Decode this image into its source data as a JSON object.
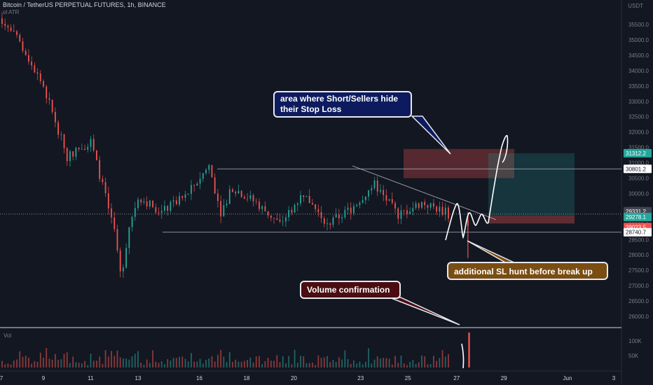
{
  "header": {
    "symbol_line": "Bitcoin / TetherUS PERPETUAL FUTURES, 1h, BINANCE",
    "indicator_line": "ol ATR",
    "currency": "USDT"
  },
  "annotations": {
    "stoploss": "area where Short/Sellers hide their Stop Loss",
    "sl_hunt": "additional SL hunt before break up",
    "volume": "Volume confirmation"
  },
  "colors": {
    "background": "#131722",
    "bull": "#26a69a",
    "bear": "#ef5350",
    "grid_text": "#787b86"
  },
  "chart_data": {
    "type": "candlestick",
    "title": "Bitcoin / TetherUS PERPETUAL FUTURES, 1h, BINANCE",
    "ylim": [
      25500,
      36500
    ],
    "y_ticks": [
      26000,
      26500,
      27000,
      27500,
      28000,
      28500,
      29000,
      29500,
      30000,
      30500,
      31000,
      31500,
      32000,
      32500,
      33000,
      33500,
      34000,
      34500,
      35000,
      35500
    ],
    "x_ticks": [
      "7",
      "9",
      "11",
      "13",
      "16",
      "18",
      "20",
      "23",
      "25",
      "27",
      "29",
      "Jun",
      "3"
    ],
    "price_series": [
      {
        "day": 7,
        "price": 35900
      },
      {
        "day": 8,
        "price": 34900
      },
      {
        "day": 9,
        "price": 33500
      },
      {
        "day": 10,
        "price": 31200
      },
      {
        "day": 11,
        "price": 31700
      },
      {
        "day": 12,
        "price": 28800
      },
      {
        "day": 12.3,
        "price": 27200
      },
      {
        "day": 12.6,
        "price": 28900
      },
      {
        "day": 13,
        "price": 29900
      },
      {
        "day": 14,
        "price": 29400
      },
      {
        "day": 15,
        "price": 29900
      },
      {
        "day": 16,
        "price": 30900
      },
      {
        "day": 16.5,
        "price": 29400
      },
      {
        "day": 17,
        "price": 30200
      },
      {
        "day": 18,
        "price": 29700
      },
      {
        "day": 19,
        "price": 29000
      },
      {
        "day": 20,
        "price": 30000
      },
      {
        "day": 20.5,
        "price": 29500
      },
      {
        "day": 21,
        "price": 29000
      },
      {
        "day": 22,
        "price": 29500
      },
      {
        "day": 23,
        "price": 30300
      },
      {
        "day": 24,
        "price": 29300
      },
      {
        "day": 25,
        "price": 29700
      },
      {
        "day": 26,
        "price": 29400
      },
      {
        "day": 26.5,
        "price": 29100
      },
      {
        "day": 27,
        "price": 29331
      }
    ],
    "horizontal_levels": [
      30801.2,
      28740.7
    ],
    "price_labels": [
      {
        "value": "31312.2",
        "kind": "target"
      },
      {
        "value": "30801.2",
        "kind": "level"
      },
      {
        "value": "29331.2",
        "kind": "last"
      },
      {
        "value": "29278.1",
        "kind": "entry"
      },
      {
        "value": "29023.5",
        "kind": "stop"
      },
      {
        "value": "28740.7",
        "kind": "level"
      }
    ],
    "volume": {
      "label": "Vol",
      "ticks": [
        "100K",
        "50K"
      ],
      "spike_day": 27,
      "spike_value": 120000
    }
  }
}
